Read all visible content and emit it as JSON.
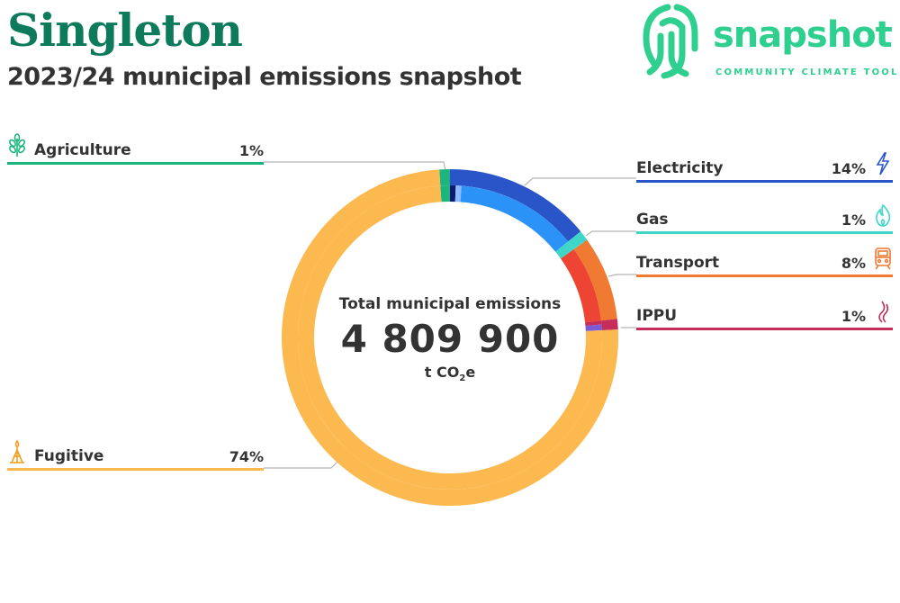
{
  "header": {
    "title": "Singleton",
    "subtitle": "2023/24 municipal emissions snapshot"
  },
  "logo": {
    "word": "snapshot",
    "tagline": "COMMUNITY CLIMATE TOOL"
  },
  "center": {
    "label": "Total municipal emissions",
    "value": "4 809 900",
    "unit_prefix": "t CO",
    "unit_sub": "2",
    "unit_suffix": "e"
  },
  "chart_data": {
    "type": "pie",
    "title": "2023/24 municipal emissions snapshot",
    "total": "4 809 900",
    "unit": "t CO2e",
    "series": [
      {
        "name": "Agriculture",
        "value": 1,
        "label": "1%",
        "color": "#1eb47e",
        "icon": "wheat-icon"
      },
      {
        "name": "Electricity",
        "value": 14,
        "label": "14%",
        "color": "#2a55c9",
        "icon": "lightning-icon"
      },
      {
        "name": "Gas",
        "value": 1,
        "label": "1%",
        "color": "#3fd6c9",
        "icon": "flame-icon"
      },
      {
        "name": "Transport",
        "value": 8,
        "label": "8%",
        "color": "#f07a32",
        "icon": "train-icon"
      },
      {
        "name": "IPPU",
        "value": 1,
        "label": "1%",
        "color": "#c72d5a",
        "icon": "smoke-icon"
      },
      {
        "name": "Fugitive",
        "value": 74,
        "label": "74%",
        "color": "#fbb950",
        "icon": "flare-icon"
      }
    ],
    "sub_segments": {
      "Electricity": [
        {
          "color": "#0a1a6e",
          "value": 0.6
        },
        {
          "color": "#8fb9ff",
          "value": 0.6
        },
        {
          "color": "#2b93f7",
          "value": 12.8
        }
      ],
      "Transport": [
        {
          "color": "#ee4433",
          "value": 8
        }
      ],
      "IPPU": [
        {
          "color": "#c72d5a",
          "value": 0.4
        },
        {
          "color": "#7a5bd6",
          "value": 0.6
        }
      ]
    }
  }
}
